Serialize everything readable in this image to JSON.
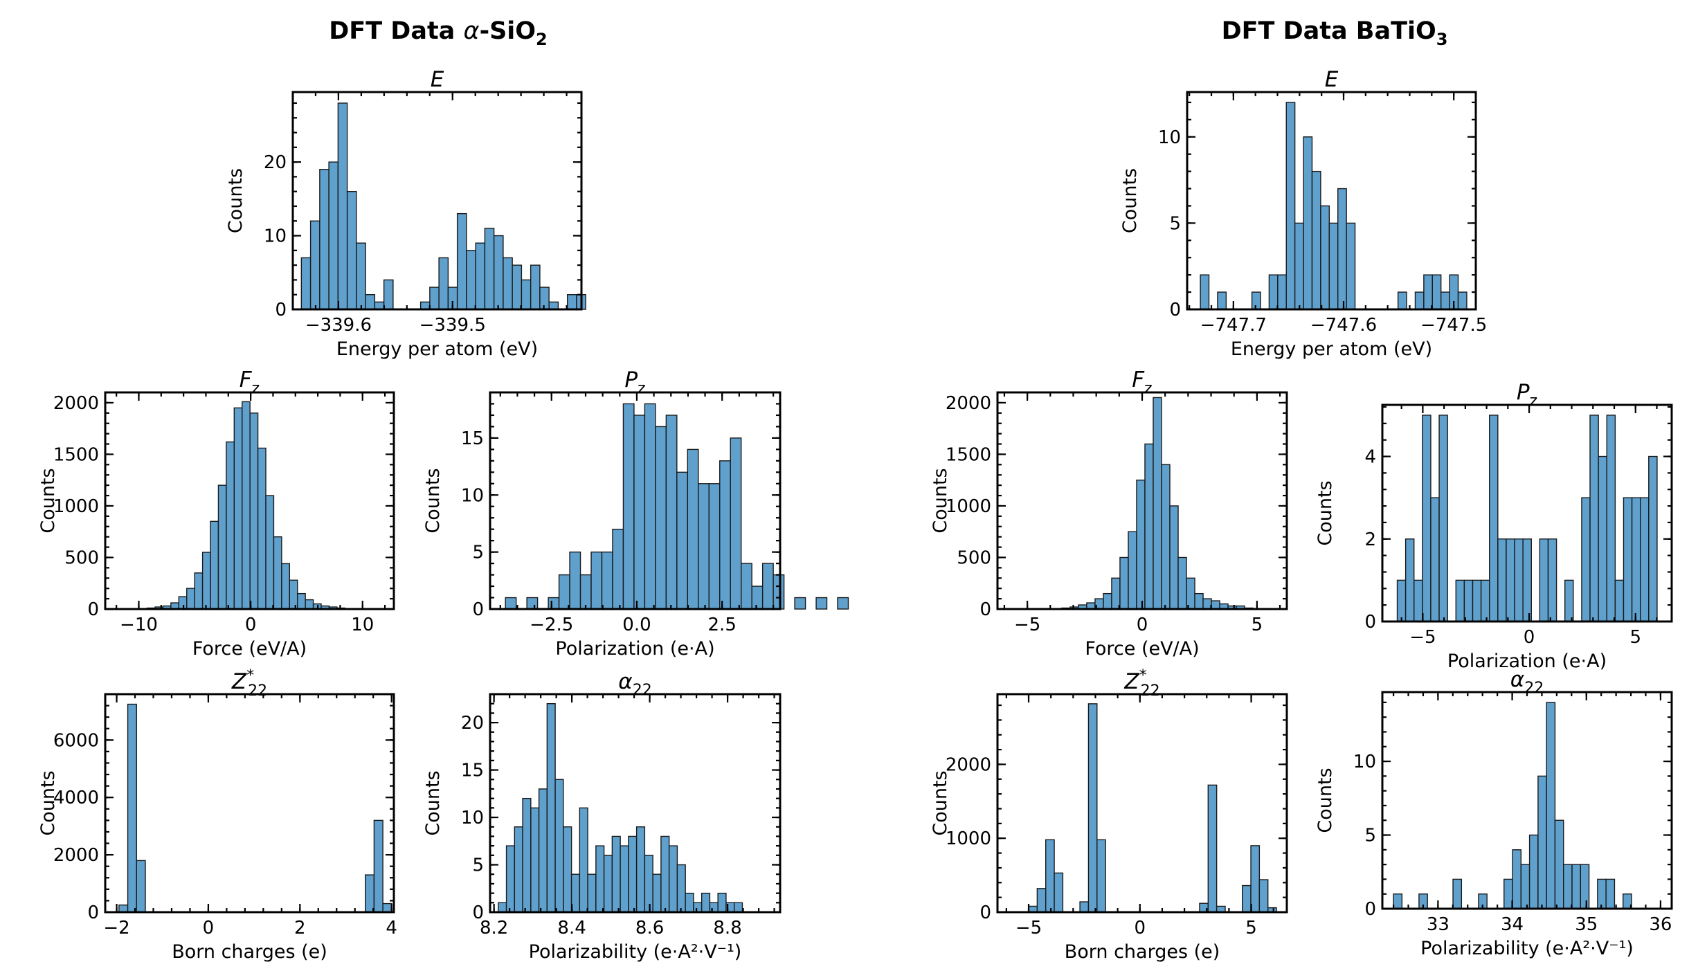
{
  "figure": {
    "left_title": "DFT Data α-SiO₂",
    "right_title": "DFT Data BaTiO₃"
  },
  "chart_data": [
    {
      "id": "sio2-energy",
      "type": "bar",
      "title": "E",
      "xlabel": "Energy per atom (eV)",
      "ylabel": "Counts",
      "xlim": [
        -339.64,
        -339.387
      ],
      "ylim": [
        0,
        29.5
      ],
      "xticks": [
        -339.6,
        -339.5
      ],
      "xticklabels": [
        "−339.6",
        "−339.5"
      ],
      "yticks": [
        0,
        10,
        20
      ],
      "yticklabels": [
        "0",
        "10",
        "20"
      ],
      "bin_start": -339.6325,
      "bin_width": 0.00804,
      "values": [
        7,
        12,
        19,
        20,
        28,
        16,
        9,
        2,
        1,
        4,
        0,
        0,
        0,
        1,
        3,
        7,
        3,
        13,
        8,
        9,
        11,
        10,
        7,
        6,
        4,
        6,
        3,
        1,
        0,
        2,
        2
      ]
    },
    {
      "id": "sio2-force",
      "type": "bar",
      "title": "F_z",
      "xlabel": "Force (eV/A)",
      "ylabel": "Counts",
      "xlim": [
        -13.0,
        12.8
      ],
      "ylim": [
        0,
        2100
      ],
      "xticks": [
        -10,
        0,
        10
      ],
      "xticklabels": [
        "−10",
        "0",
        "10"
      ],
      "yticks": [
        0,
        500,
        1000,
        1500,
        2000
      ],
      "yticklabels": [
        "0",
        "500",
        "1000",
        "1500",
        "2000"
      ],
      "bin_start": -9.25,
      "bin_width": 0.707,
      "values": [
        10,
        20,
        30,
        60,
        120,
        200,
        350,
        550,
        850,
        1200,
        1620,
        1950,
        2010,
        1900,
        1560,
        1100,
        700,
        440,
        280,
        150,
        90,
        50,
        30,
        20,
        10
      ]
    },
    {
      "id": "sio2-pol",
      "type": "bar",
      "title": "P_z",
      "xlabel": "Polarization (e·A)",
      "ylabel": "Counts",
      "xlim": [
        -4.3,
        4.2
      ],
      "ylim": [
        0,
        19
      ],
      "xticks": [
        -2.5,
        0.0,
        2.5
      ],
      "xticklabels": [
        "−2.5",
        "0.0",
        "2.5"
      ],
      "yticks": [
        0,
        5,
        10,
        15
      ],
      "yticklabels": [
        "0",
        "5",
        "10",
        "15"
      ],
      "bin_start": -3.85,
      "bin_width": 0.314,
      "values": [
        1,
        0,
        1,
        0,
        1,
        3,
        5,
        3,
        5,
        5,
        7,
        18,
        17,
        18,
        16,
        17,
        12,
        14,
        11,
        11,
        13,
        15,
        4,
        2,
        4,
        3,
        0,
        1,
        0,
        1,
        0,
        1
      ]
    },
    {
      "id": "sio2-born",
      "type": "bar",
      "title": "Z*_22",
      "xlabel": "Born charges (e)",
      "ylabel": "Counts",
      "xlim": [
        -2.25,
        4.05
      ],
      "ylim": [
        0,
        7600
      ],
      "xticks": [
        -2,
        0,
        2,
        4
      ],
      "xticklabels": [
        "−2",
        "0",
        "2",
        "4"
      ],
      "yticks": [
        0,
        2000,
        4000,
        6000
      ],
      "yticklabels": [
        "0",
        "2000",
        "4000",
        "6000"
      ],
      "bin_start": -1.95,
      "bin_width": 0.192,
      "values": [
        250,
        7250,
        1800,
        0,
        0,
        0,
        0,
        0,
        0,
        0,
        0,
        0,
        0,
        0,
        0,
        0,
        0,
        0,
        0,
        0,
        0,
        0,
        0,
        0,
        0,
        0,
        0,
        0,
        1300,
        3200,
        300
      ]
    },
    {
      "id": "sio2-alpha",
      "type": "bar",
      "title": "α_22",
      "xlabel": "Polarizability (e·A²·V⁻¹)",
      "ylabel": "Counts",
      "xlim": [
        8.19,
        8.935
      ],
      "ylim": [
        0,
        23
      ],
      "xticks": [
        8.2,
        8.4,
        8.6,
        8.8
      ],
      "xticklabels": [
        "8.2",
        "8.4",
        "8.6",
        "8.8"
      ],
      "yticks": [
        0,
        5,
        10,
        15,
        20
      ],
      "yticklabels": [
        "0",
        "5",
        "10",
        "15",
        "20"
      ],
      "bin_start": 8.211,
      "bin_width": 0.0209,
      "values": [
        1,
        7,
        9,
        12,
        11,
        13,
        22,
        14,
        9,
        4,
        11,
        4,
        7,
        6,
        8,
        7,
        8,
        9,
        6,
        4,
        8,
        7,
        5,
        2,
        1,
        2,
        1,
        2,
        1,
        1
      ]
    },
    {
      "id": "bto-energy",
      "type": "bar",
      "title": "E",
      "xlabel": "Energy per atom (eV)",
      "ylabel": "Counts",
      "xlim": [
        -747.742,
        -747.48
      ],
      "ylim": [
        0,
        12.6
      ],
      "xticks": [
        -747.7,
        -747.6,
        -747.5
      ],
      "xticklabels": [
        "−747.7",
        "−747.6",
        "−747.5"
      ],
      "yticks": [
        0,
        5,
        10
      ],
      "yticklabels": [
        "0",
        "5",
        "10"
      ],
      "bin_start": -747.73,
      "bin_width": 0.0078,
      "values": [
        2,
        0,
        1,
        0,
        0,
        0,
        1,
        0,
        2,
        2,
        12,
        5,
        10,
        8,
        6,
        5,
        7,
        5,
        0,
        0,
        0,
        0,
        0,
        1,
        0,
        1,
        2,
        2,
        1,
        2,
        1
      ]
    },
    {
      "id": "bto-force",
      "type": "bar",
      "title": "F_z",
      "xlabel": "Force (eV/A)",
      "ylabel": "Counts",
      "xlim": [
        -6.3,
        6.3
      ],
      "ylim": [
        0,
        2100
      ],
      "xticks": [
        -5,
        0,
        5
      ],
      "xticklabels": [
        "−5",
        "0",
        "5"
      ],
      "yticks": [
        0,
        500,
        1000,
        1500,
        2000
      ],
      "yticklabels": [
        "0",
        "500",
        "1000",
        "1500",
        "2000"
      ],
      "bin_start": -3.5,
      "bin_width": 0.362,
      "values": [
        10,
        20,
        40,
        60,
        100,
        150,
        300,
        500,
        750,
        1250,
        1600,
        2050,
        1400,
        1000,
        500,
        300,
        150,
        100,
        80,
        50,
        30,
        30,
        10
      ]
    },
    {
      "id": "bto-pol",
      "type": "bar",
      "title": "P_z",
      "xlabel": "Polarization (e·A)",
      "ylabel": "Counts",
      "xlim": [
        -6.9,
        6.7
      ],
      "ylim": [
        0,
        5.25
      ],
      "xticks": [
        -5,
        0,
        5
      ],
      "xticklabels": [
        "−5",
        "0",
        "5"
      ],
      "yticks": [
        0,
        2,
        4
      ],
      "yticklabels": [
        "0",
        "2",
        "4"
      ],
      "bin_start": -6.2,
      "bin_width": 0.394,
      "values": [
        1,
        2,
        1,
        5,
        3,
        5,
        0,
        1,
        1,
        1,
        1,
        5,
        2,
        2,
        2,
        2,
        0,
        2,
        2,
        0,
        1,
        0,
        3,
        5,
        4,
        5,
        1,
        3,
        3,
        3,
        4
      ]
    },
    {
      "id": "bto-born",
      "type": "bar",
      "title": "Z*_22",
      "xlabel": "Born charges (e)",
      "ylabel": "Counts",
      "xlim": [
        -6.4,
        6.6
      ],
      "ylim": [
        0,
        2950
      ],
      "xticks": [
        -5,
        0,
        5
      ],
      "xticklabels": [
        "−5",
        "0",
        "5"
      ],
      "yticks": [
        0,
        1000,
        2000
      ],
      "yticklabels": [
        "0",
        "1000",
        "2000"
      ],
      "bin_start": -5.0,
      "bin_width": 0.384,
      "values": [
        80,
        320,
        980,
        530,
        0,
        0,
        140,
        2820,
        980,
        0,
        0,
        0,
        0,
        0,
        0,
        0,
        0,
        0,
        0,
        0,
        120,
        1720,
        80,
        0,
        0,
        360,
        900,
        440,
        60
      ]
    },
    {
      "id": "bto-alpha",
      "type": "bar",
      "title": "α_22",
      "xlabel": "Polarizability (e·A²·V⁻¹)",
      "ylabel": "Counts",
      "xlim": [
        32.25,
        36.15
      ],
      "ylim": [
        0,
        14.7
      ],
      "xticks": [
        33,
        34,
        35,
        36
      ],
      "xticklabels": [
        "33",
        "34",
        "35",
        "36"
      ],
      "yticks": [
        0,
        5,
        10
      ],
      "yticklabels": [
        "0",
        "5",
        "10"
      ],
      "bin_start": 32.4,
      "bin_width": 0.1146,
      "values": [
        1,
        0,
        0,
        1,
        0,
        0,
        0,
        2,
        0,
        0,
        1,
        0,
        0,
        2,
        4,
        3,
        5,
        9,
        14,
        6,
        3,
        3,
        3,
        0,
        2,
        2,
        0,
        1
      ]
    }
  ]
}
